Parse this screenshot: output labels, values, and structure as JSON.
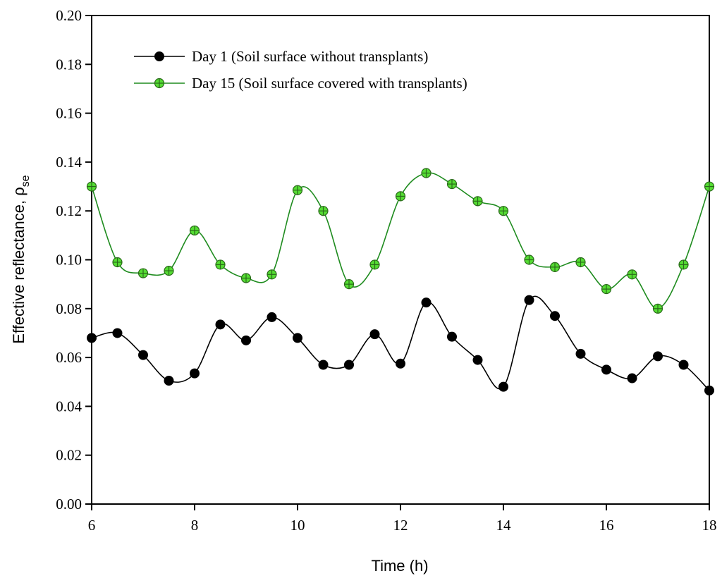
{
  "chart_data": {
    "type": "line",
    "title": "",
    "xlabel": "Time (h)",
    "ylabel": {
      "main": "Effective reflectance, ρ",
      "subscript": "se"
    },
    "xlim": [
      6,
      18
    ],
    "ylim": [
      0,
      0.2
    ],
    "x_ticks": [
      "6",
      "8",
      "10",
      "12",
      "14",
      "16",
      "18"
    ],
    "y_ticks": [
      "0.00",
      "0.02",
      "0.04",
      "0.06",
      "0.08",
      "0.10",
      "0.12",
      "0.14",
      "0.16",
      "0.18",
      "0.20"
    ],
    "x": [
      6,
      6.5,
      7,
      7.5,
      8,
      8.5,
      9,
      9.5,
      10,
      10.5,
      11,
      11.5,
      12,
      12.5,
      13,
      13.5,
      14,
      14.5,
      15,
      15.5,
      16,
      16.5,
      17,
      17.5,
      18
    ],
    "legend_position": "top-left",
    "series": [
      {
        "name": "Day 1 (Soil surface without transplants)",
        "marker": "filled-circle",
        "line_color": "#000000",
        "marker_color": "#000000",
        "values": [
          0.068,
          0.07,
          0.061,
          0.0505,
          0.0535,
          0.0735,
          0.067,
          0.0765,
          0.068,
          0.057,
          0.057,
          0.0695,
          0.0575,
          0.0825,
          0.0685,
          0.059,
          0.048,
          0.0835,
          0.077,
          0.0615,
          0.055,
          0.0515,
          0.0605,
          0.057,
          0.0465
        ]
      },
      {
        "name": "Day 15 (Soil surface covered with transplants)",
        "marker": "crossed-circle",
        "line_color": "#1f8c1f",
        "marker_color": "#55dd33",
        "values": [
          0.13,
          0.099,
          0.0945,
          0.0955,
          0.112,
          0.098,
          0.0925,
          0.094,
          0.1285,
          0.12,
          0.09,
          0.098,
          0.126,
          0.1355,
          0.131,
          0.124,
          0.12,
          0.1,
          0.097,
          0.099,
          0.088,
          0.094,
          0.08,
          0.098,
          0.13
        ]
      }
    ]
  }
}
